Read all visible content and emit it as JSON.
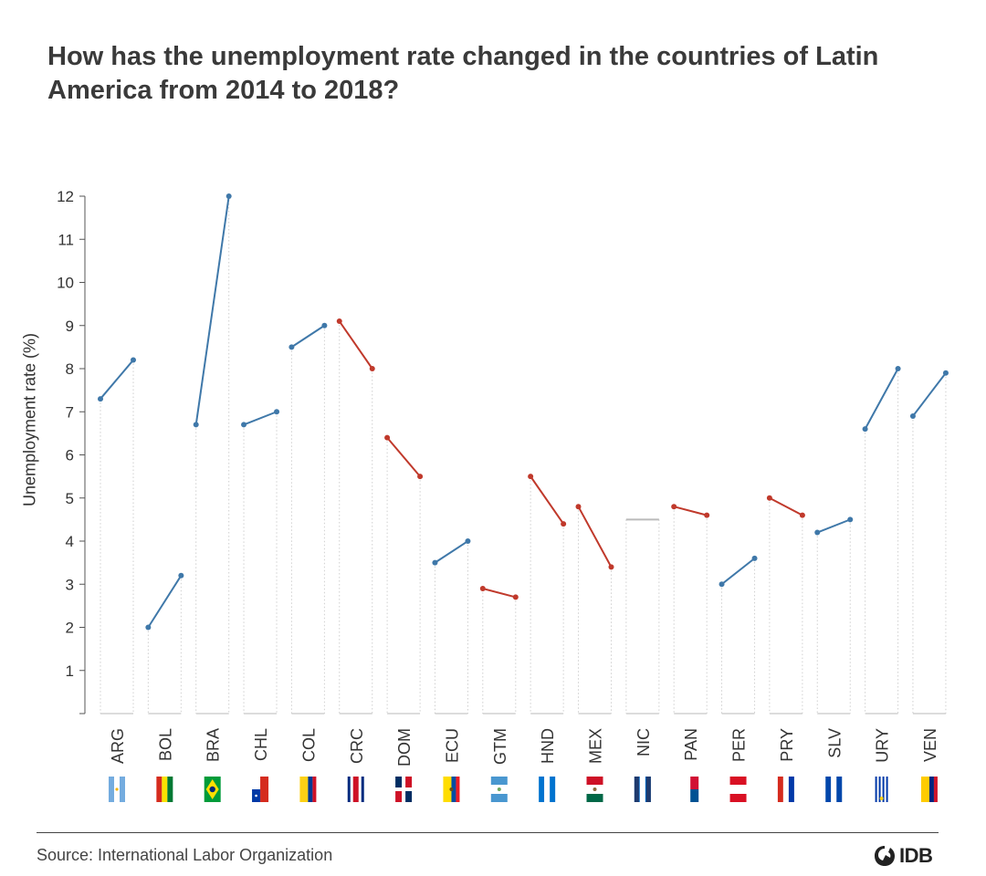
{
  "title": "How has the unemployment rate changed in the countries of Latin America from 2014 to 2018?",
  "source": "Source: International Labor Organization",
  "logo": {
    "text": "IDB"
  },
  "colors": {
    "increase": "#3f78a9",
    "decrease": "#c0392b",
    "flat": "#bbbbbb"
  },
  "chart_data": {
    "type": "slope",
    "title": "How has the unemployment rate changed in the countries of Latin America from 2014 to 2018?",
    "ylabel": "Unemployment rate (%)",
    "xlabel": "",
    "ylim": [
      0,
      12
    ],
    "yticks": [
      1,
      2,
      3,
      4,
      5,
      6,
      7,
      8,
      9,
      10,
      11,
      12
    ],
    "periods": [
      "2014",
      "2018"
    ],
    "categories": [
      "ARG",
      "BOL",
      "BRA",
      "CHL",
      "COL",
      "CRC",
      "DOM",
      "ECU",
      "GTM",
      "HND",
      "MEX",
      "NIC",
      "PAN",
      "PER",
      "PRY",
      "SLV",
      "URY",
      "VEN"
    ],
    "series": [
      {
        "values": [
          7.3,
          2.0,
          6.7,
          6.7,
          8.5,
          9.1,
          6.4,
          3.5,
          2.9,
          5.5,
          4.8,
          4.5,
          4.8,
          3.0,
          5.0,
          4.2,
          6.6,
          6.9
        ]
      },
      {
        "values": [
          8.2,
          3.2,
          12.0,
          7.0,
          9.0,
          8.0,
          5.5,
          4.0,
          2.7,
          4.4,
          3.4,
          4.5,
          4.6,
          3.6,
          4.6,
          4.5,
          8.0,
          7.9
        ]
      }
    ],
    "flags": [
      "flag-argentina",
      "flag-bolivia",
      "flag-brazil",
      "flag-chile",
      "flag-colombia",
      "flag-costa-rica",
      "flag-dominican-republic",
      "flag-ecuador",
      "flag-guatemala",
      "flag-honduras",
      "flag-mexico",
      "flag-nicaragua",
      "flag-panama",
      "flag-peru",
      "flag-paraguay",
      "flag-el-salvador",
      "flag-uruguay",
      "flag-venezuela"
    ],
    "grid": false,
    "legend": "none"
  }
}
